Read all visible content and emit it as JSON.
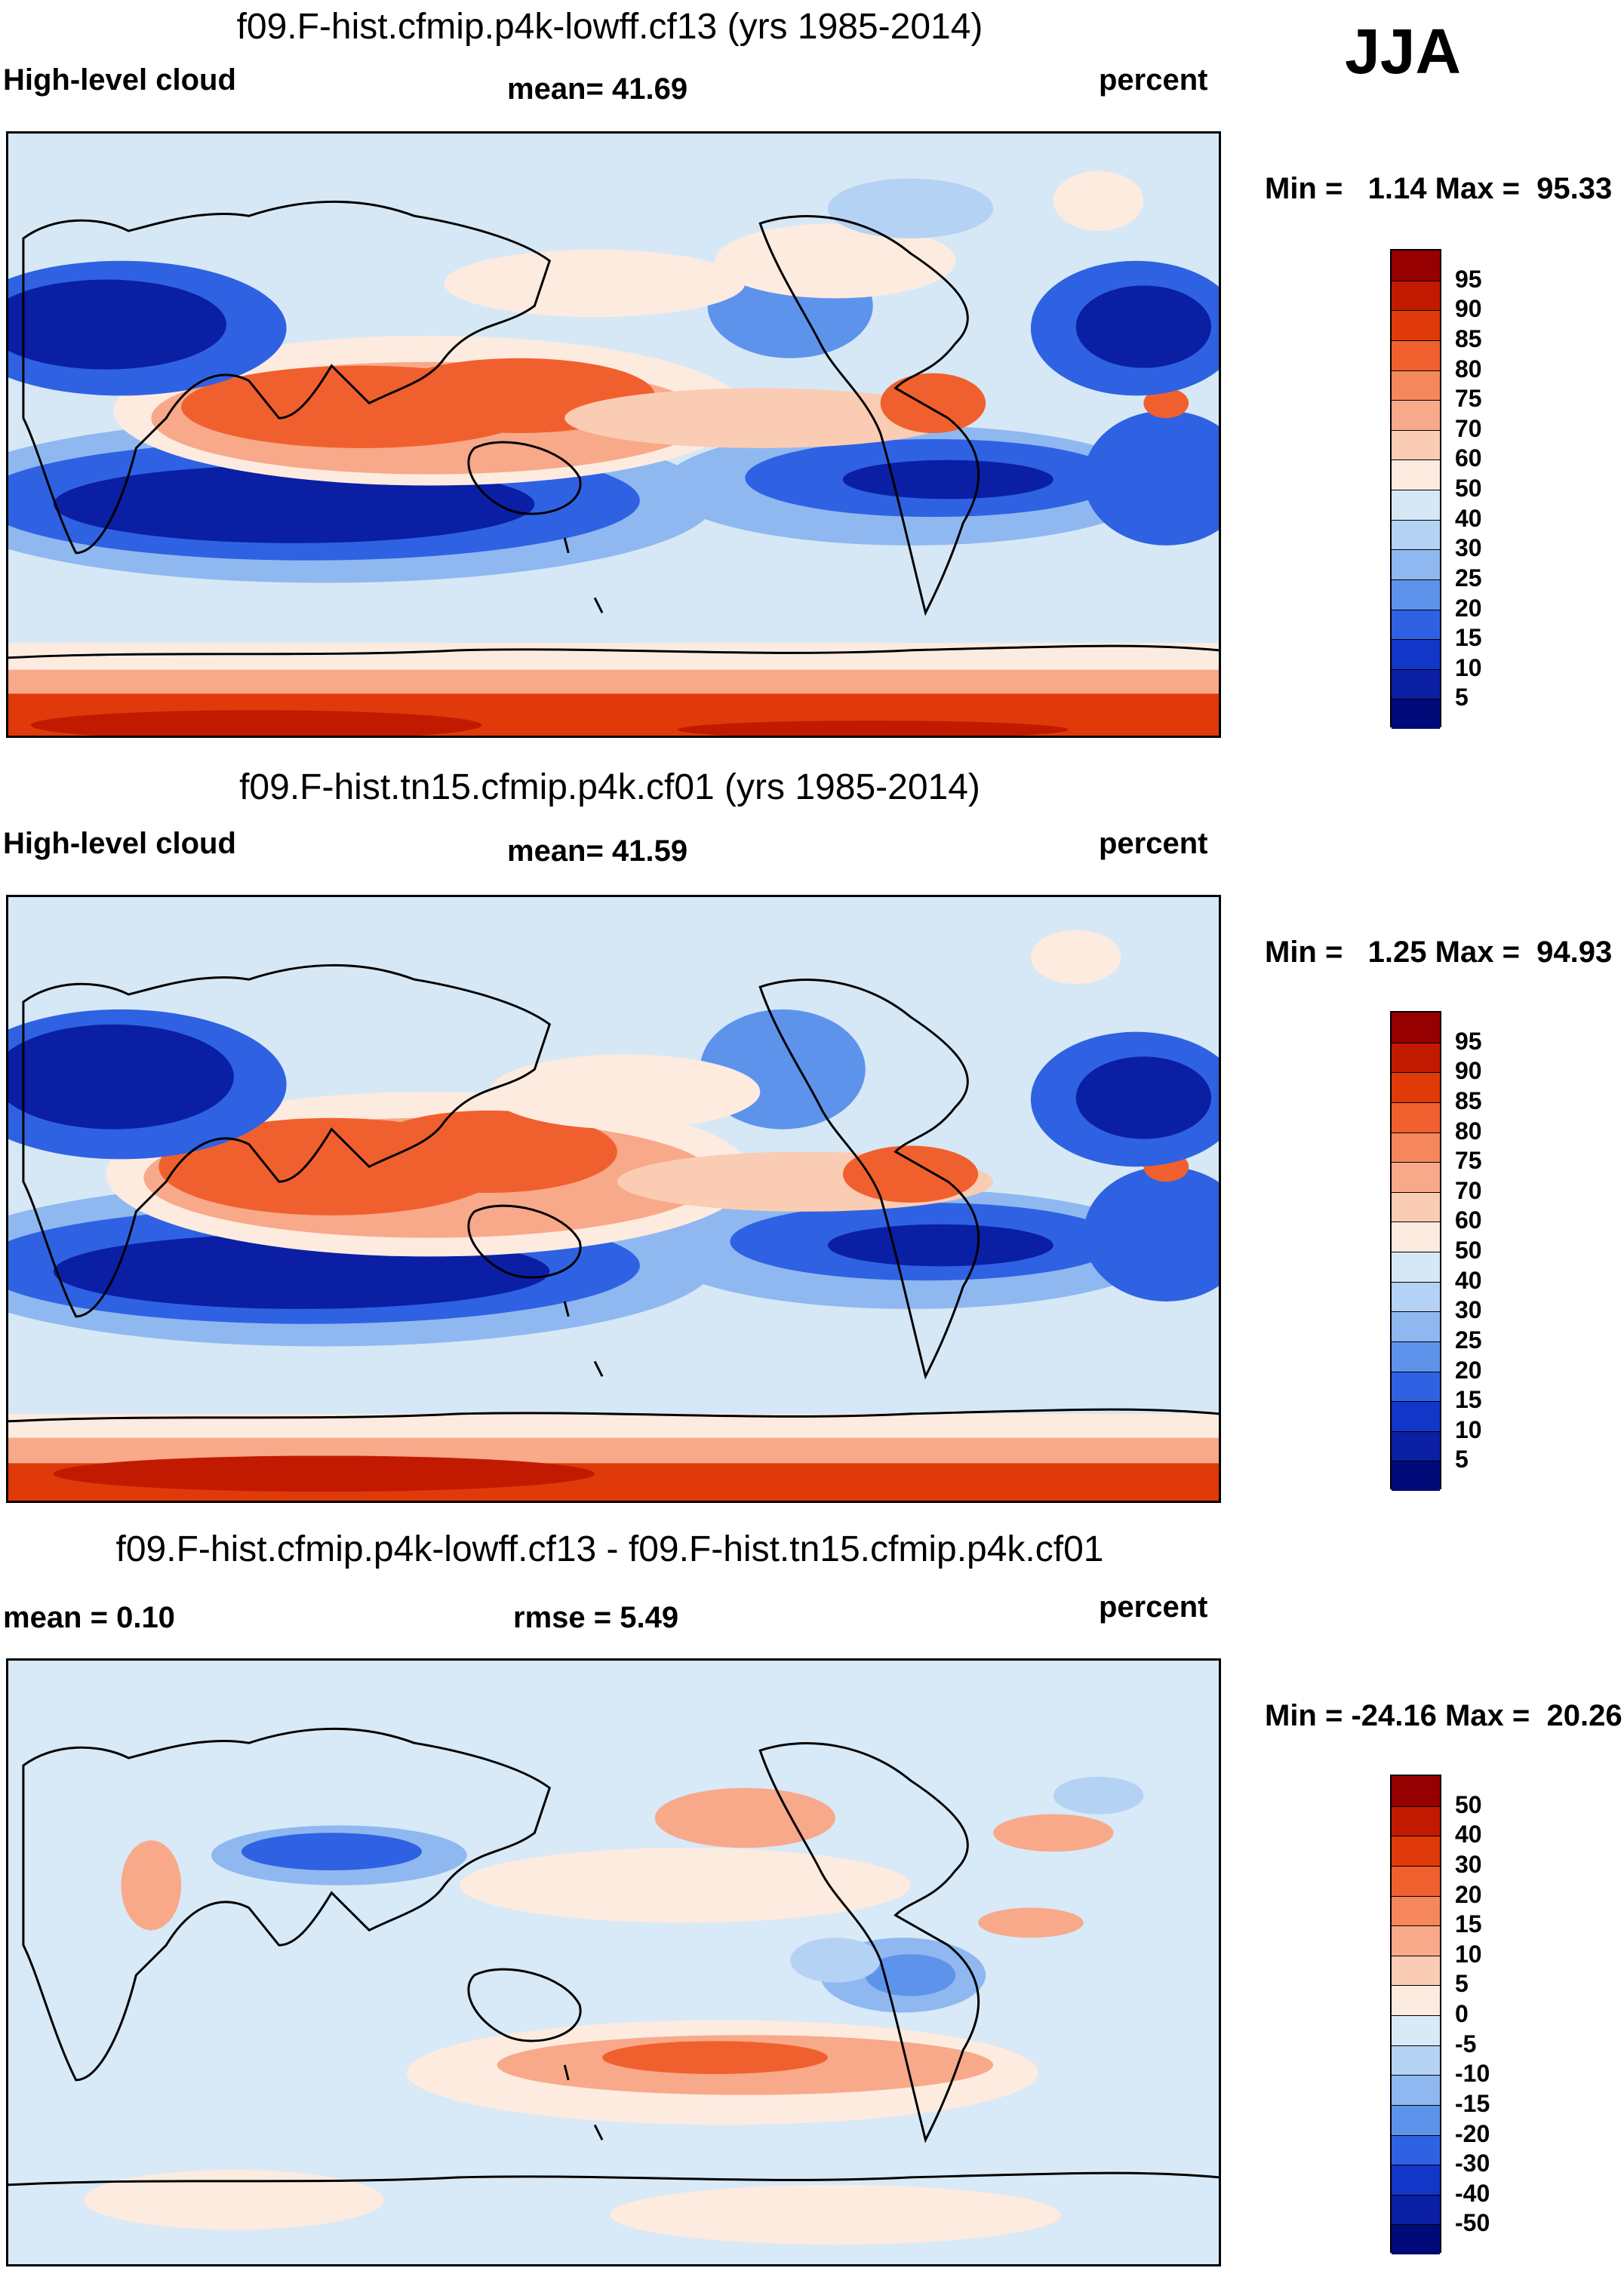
{
  "season": "JJA",
  "colors": {
    "coast": "#000000",
    "bg_abs": "#d6e8f6",
    "bg_diff": "#d8e9f7"
  },
  "panels": [
    {
      "title": "f09.F-hist.cfmip.p4k-lowff.cf13 (yrs 1985-2014)",
      "left_label": "High-level cloud",
      "center_label": "mean=  41.69",
      "right_label": "percent",
      "minmax": "Min =   1.14 Max =  95.33",
      "colorbar": {
        "labels": [
          "95",
          "90",
          "85",
          "80",
          "75",
          "70",
          "60",
          "50",
          "40",
          "30",
          "25",
          "20",
          "15",
          "10",
          "5"
        ],
        "colors": [
          "#960000",
          "#c21a00",
          "#e03a0a",
          "#f0602e",
          "#f6875c",
          "#f8a98a",
          "#fbccb4",
          "#fdebe0",
          "#d6e8f6",
          "#b4d2f4",
          "#8fb8f0",
          "#5e93ec",
          "#2f62e2",
          "#1236c8",
          "#0a1fa4",
          "#000a78"
        ]
      }
    },
    {
      "title": "f09.F-hist.tn15.cfmip.p4k.cf01 (yrs 1985-2014)",
      "left_label": "High-level cloud",
      "center_label": "mean=  41.59",
      "right_label": "percent",
      "minmax": "Min =   1.25 Max =  94.93",
      "colorbar": {
        "labels": [
          "95",
          "90",
          "85",
          "80",
          "75",
          "70",
          "60",
          "50",
          "40",
          "30",
          "25",
          "20",
          "15",
          "10",
          "5"
        ],
        "colors": [
          "#960000",
          "#c21a00",
          "#e03a0a",
          "#f0602e",
          "#f6875c",
          "#f8a98a",
          "#fbccb4",
          "#fdebe0",
          "#d6e8f6",
          "#b4d2f4",
          "#8fb8f0",
          "#5e93ec",
          "#2f62e2",
          "#1236c8",
          "#0a1fa4",
          "#000a78"
        ]
      }
    },
    {
      "title": "f09.F-hist.cfmip.p4k-lowff.cf13 - f09.F-hist.tn15.cfmip.p4k.cf01",
      "left_label": "mean =   0.10",
      "center_label": "rmse =   5.49",
      "right_label": "percent",
      "minmax": "Min = -24.16 Max =  20.26",
      "colorbar": {
        "labels": [
          "50",
          "40",
          "30",
          "20",
          "15",
          "10",
          "5",
          "0",
          "-5",
          "-10",
          "-15",
          "-20",
          "-30",
          "-40",
          "-50"
        ],
        "colors": [
          "#960000",
          "#c21a00",
          "#e03a0a",
          "#f0602e",
          "#f6875c",
          "#f8a98a",
          "#fbccb4",
          "#fdebe0",
          "#d8e9f7",
          "#b4d2f4",
          "#8fb8f0",
          "#5e93ec",
          "#2f62e2",
          "#1236c8",
          "#0a1fa4",
          "#000a78"
        ]
      }
    }
  ]
}
